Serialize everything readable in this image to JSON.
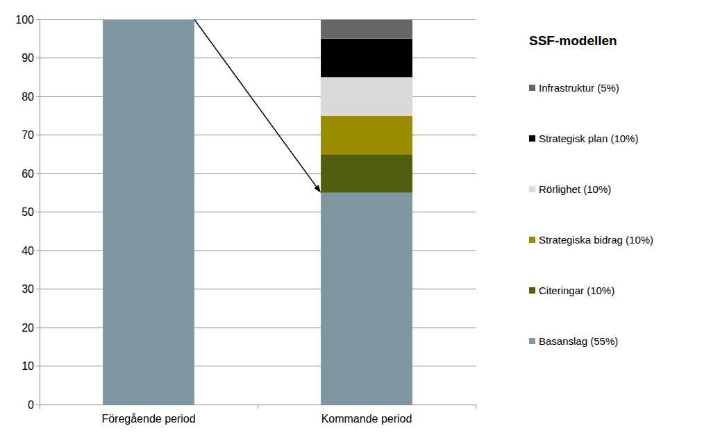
{
  "chart_data": {
    "type": "bar",
    "stacked": true,
    "legend_title": "SSF-modellen",
    "categories": [
      "Föregående period",
      "Kommande period"
    ],
    "series": [
      {
        "name": "Basanslag (55%)",
        "color": "#7f97a3",
        "values": [
          100,
          55
        ]
      },
      {
        "name": "Citeringar (10%)",
        "color": "#515f0c",
        "values": [
          null,
          10
        ]
      },
      {
        "name": "Strategiska bidrag (10%)",
        "color": "#9c8d00",
        "values": [
          null,
          10
        ]
      },
      {
        "name": "Rörlighet (10%)",
        "color": "#d9d9d9",
        "values": [
          null,
          10
        ]
      },
      {
        "name": "Strategisk plan (10%)",
        "color": "#000000",
        "values": [
          null,
          10
        ]
      },
      {
        "name": "Infrastruktur (5%)",
        "color": "#666666",
        "values": [
          null,
          5
        ]
      }
    ],
    "ylim": [
      0,
      100
    ],
    "yticks": [
      0,
      10,
      20,
      30,
      40,
      50,
      60,
      70,
      80,
      90,
      100
    ],
    "grid": true,
    "legend": "right"
  }
}
